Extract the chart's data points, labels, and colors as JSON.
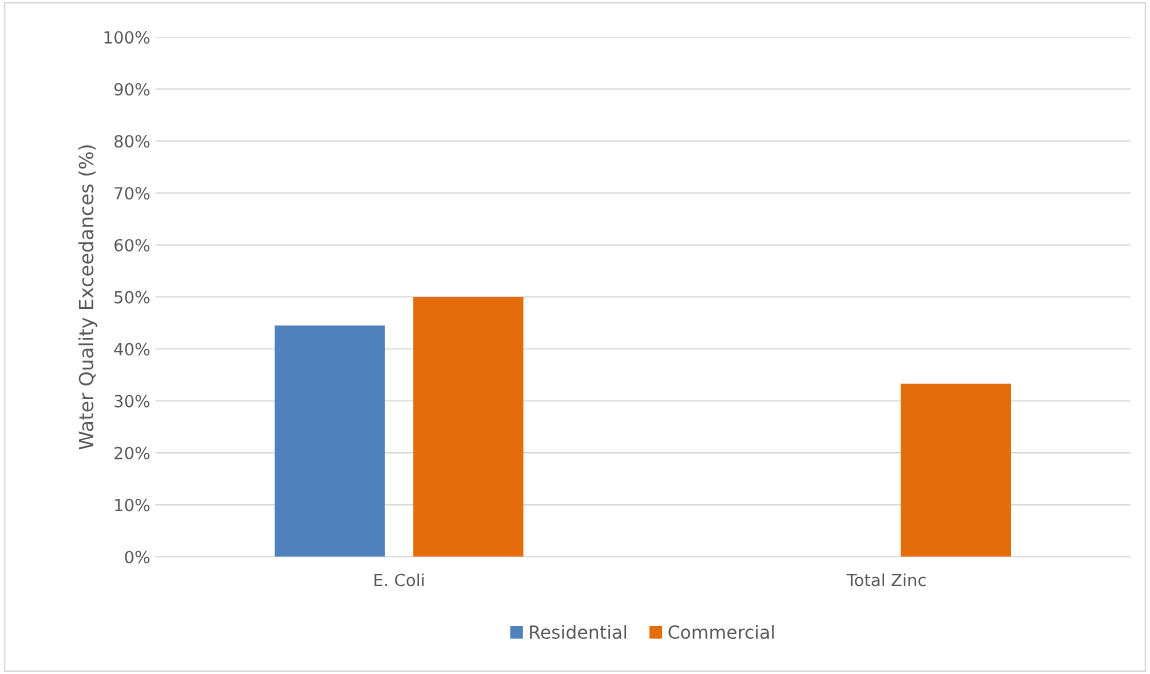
{
  "chart_data": {
    "type": "bar",
    "ylabel": "Water Quality Exceedances (%)",
    "categories": [
      "E. Coli",
      "Total Zinc"
    ],
    "series": [
      {
        "name": "Residential",
        "color": "#4f81bd",
        "values": [
          44.5,
          0
        ]
      },
      {
        "name": "Commercial",
        "color": "#e46c0a",
        "values": [
          50,
          33.3
        ]
      }
    ],
    "ylim": [
      0,
      100
    ],
    "yticks": [
      {
        "value": 0,
        "label": "0%"
      },
      {
        "value": 10,
        "label": "10%"
      },
      {
        "value": 20,
        "label": "20%"
      },
      {
        "value": 30,
        "label": "30%"
      },
      {
        "value": 40,
        "label": "40%"
      },
      {
        "value": 50,
        "label": "50%"
      },
      {
        "value": 60,
        "label": "60%"
      },
      {
        "value": 70,
        "label": "70%"
      },
      {
        "value": 80,
        "label": "80%"
      },
      {
        "value": 90,
        "label": "90%"
      },
      {
        "value": 100,
        "label": "100%"
      }
    ],
    "grid": "y",
    "legend": "bottom"
  }
}
